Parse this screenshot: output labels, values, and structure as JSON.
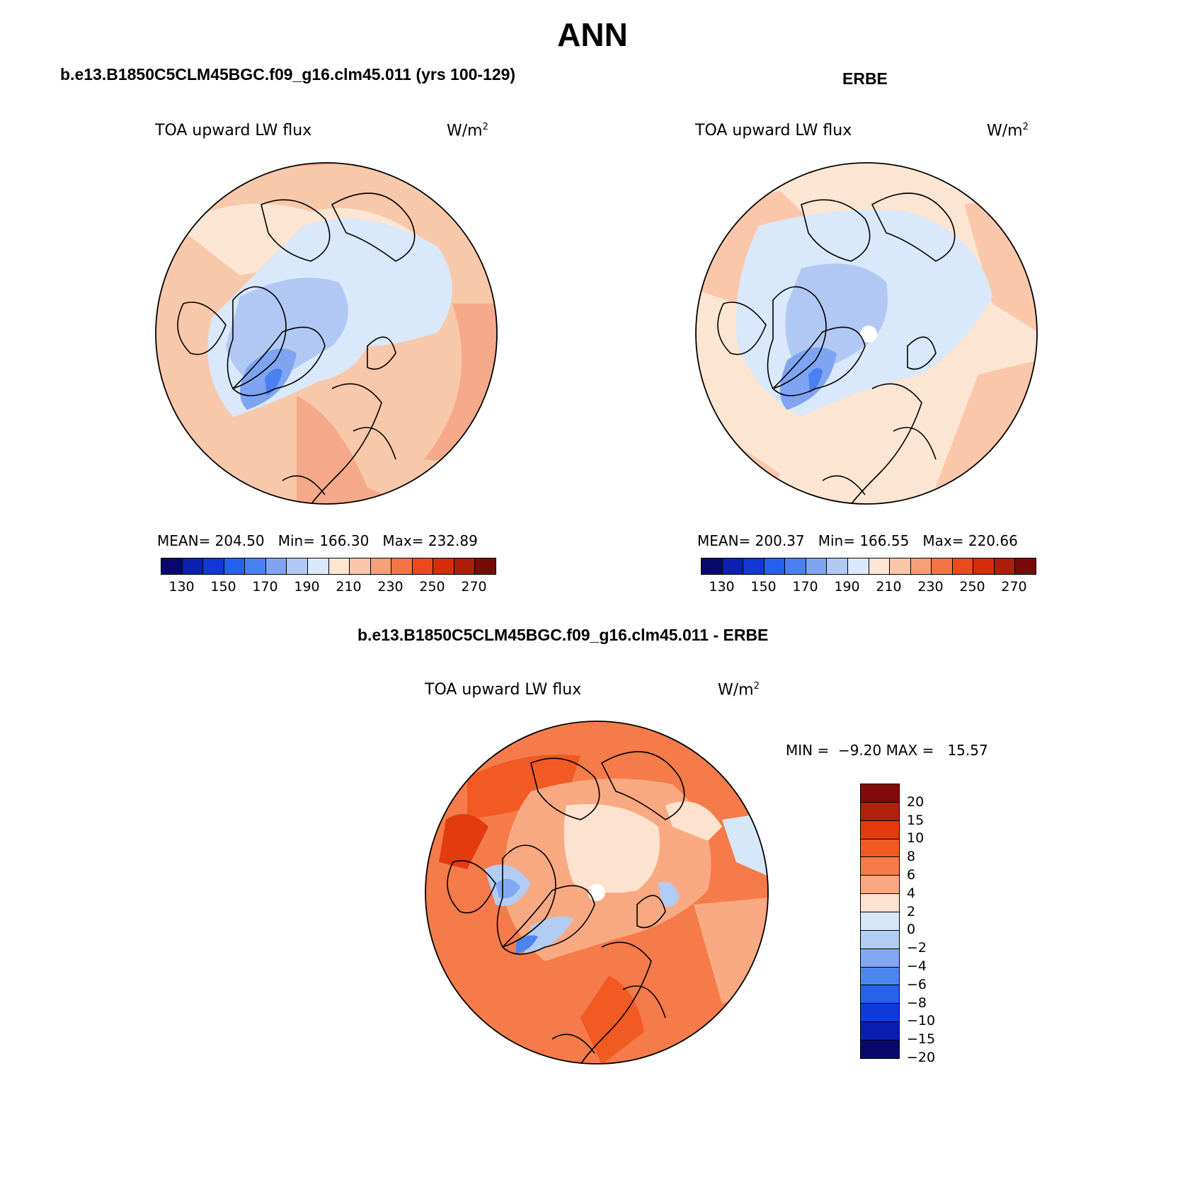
{
  "title": "ANN",
  "colors": {
    "ocean_model": "#f8c8aa",
    "land_outline": "#000000",
    "ice_blue": "#b9d0f6",
    "warm_orange": "#f59370"
  },
  "panels": {
    "model": {
      "header": "b.e13.B1850C5CLM45BGC.f09_g16.clm45.011 (yrs 100-129)",
      "variable": "TOA upward LW flux",
      "units_base": "W/m",
      "units_exp": "2",
      "mean_label": "MEAN=",
      "mean": "204.50",
      "min_label": "Min=",
      "min": "166.30",
      "max_label": "Max=",
      "max": "232.89"
    },
    "obs": {
      "header": "ERBE",
      "variable": "TOA upward LW flux",
      "units_base": "W/m",
      "units_exp": "2",
      "mean_label": "MEAN=",
      "mean": "200.37",
      "min_label": "Min=",
      "min": "166.55",
      "max_label": "Max=",
      "max": "220.66"
    },
    "diff": {
      "header": "b.e13.B1850C5CLM45BGC.f09_g16.clm45.011 - ERBE",
      "variable": "TOA upward LW flux",
      "units_base": "W/m",
      "units_exp": "2",
      "min_label": "MIN =",
      "min": "−9.20",
      "max_label": "MAX =",
      "max": "15.57"
    }
  },
  "colorbar_abs": {
    "colors": [
      "#08086c",
      "#0a1fb4",
      "#1037d8",
      "#2660ee",
      "#4a80f1",
      "#7fa4f2",
      "#b2c8f4",
      "#d9e8fa",
      "#fde5d3",
      "#fbc7aa",
      "#f8a07a",
      "#f57447",
      "#ec4a1d",
      "#d72c0a",
      "#b01c0a",
      "#7a0a08"
    ],
    "ticks": [
      "130",
      "150",
      "170",
      "190",
      "210",
      "230",
      "250",
      "270"
    ]
  },
  "colorbar_diff": {
    "colors": [
      "#830a0a",
      "#b0200a",
      "#e33a10",
      "#f25a23",
      "#f57b4a",
      "#f9a982",
      "#fde2cf",
      "#d7e7fa",
      "#b3ccf4",
      "#82a8f2",
      "#4d85f0",
      "#2662ec",
      "#0f3bd8",
      "#0a1fb2",
      "#08086c"
    ],
    "ticks": [
      "20",
      "15",
      "10",
      "8",
      "6",
      "4",
      "2",
      "0",
      "−2",
      "−4",
      "−6",
      "−8",
      "−10",
      "−15",
      "−20"
    ]
  }
}
